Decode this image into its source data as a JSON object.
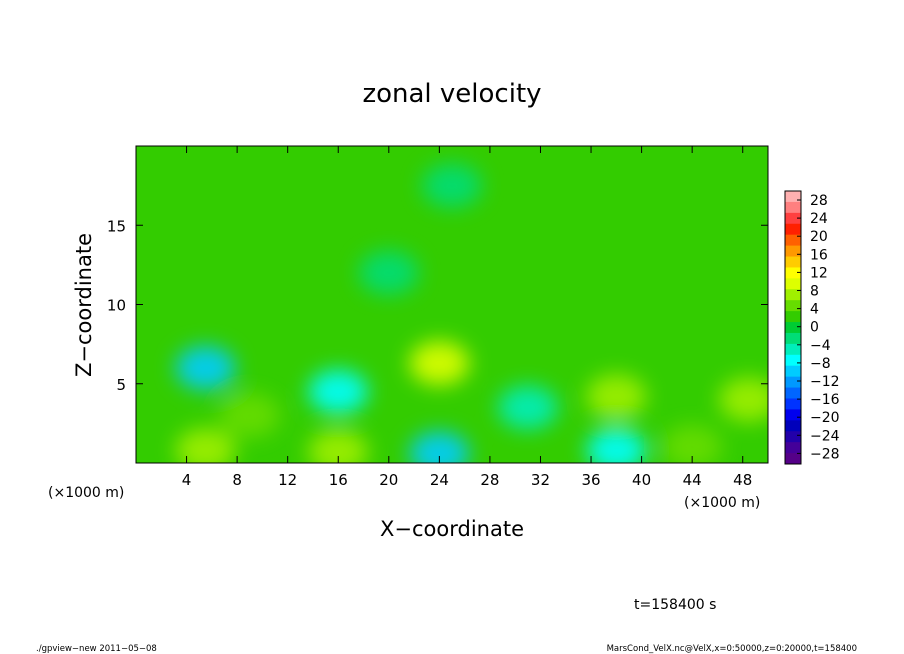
{
  "chart_data": {
    "type": "heatmap",
    "title": "zonal velocity",
    "xlabel": "X−coordinate",
    "ylabel": "Z−coordinate",
    "xunit_left": "(×1000 m)",
    "xunit_right": "(×1000 m)",
    "xlim": [
      0,
      50
    ],
    "ylim": [
      0,
      20
    ],
    "xticks": [
      4,
      8,
      12,
      16,
      20,
      24,
      28,
      32,
      36,
      40,
      44,
      48
    ],
    "yticks": [
      5,
      10,
      15
    ],
    "colorbar": {
      "tick_labels": [
        "28",
        "24",
        "20",
        "16",
        "12",
        "8",
        "4",
        "0",
        "−4",
        "−8",
        "−12",
        "−16",
        "−20",
        "−24",
        "−28"
      ],
      "colors": [
        "#ffb0b0",
        "#ff8080",
        "#ff4040",
        "#ff2000",
        "#ff6000",
        "#ff9900",
        "#ffcc00",
        "#ffff00",
        "#ddff00",
        "#a0f000",
        "#66dd00",
        "#33cc00",
        "#00cc33",
        "#00dd77",
        "#00eebb",
        "#00ffff",
        "#00ccff",
        "#0099ff",
        "#0066ff",
        "#0033ff",
        "#0000ee",
        "#0000bb",
        "#2200aa",
        "#440099",
        "#550088"
      ]
    },
    "background_value": 0,
    "features": [
      {
        "x": 5.5,
        "z": 6.0,
        "value": -10
      },
      {
        "x": 5.5,
        "z": 0.8,
        "value": 8
      },
      {
        "x": 16.0,
        "z": 4.5,
        "value": -7
      },
      {
        "x": 16.0,
        "z": 0.7,
        "value": 6
      },
      {
        "x": 24.0,
        "z": 6.3,
        "value": 9
      },
      {
        "x": 24.0,
        "z": 0.6,
        "value": -9
      },
      {
        "x": 38.0,
        "z": 4.2,
        "value": 7
      },
      {
        "x": 38.0,
        "z": 0.8,
        "value": -8
      },
      {
        "x": 48.5,
        "z": 4.0,
        "value": 6
      },
      {
        "x": 9.0,
        "z": 3.0,
        "value": 4
      },
      {
        "x": 31.0,
        "z": 3.5,
        "value": -4
      },
      {
        "x": 44.0,
        "z": 1.0,
        "value": 5
      },
      {
        "x": 25.0,
        "z": 17.5,
        "value": -3
      },
      {
        "x": 20.0,
        "z": 12.0,
        "value": -2
      }
    ]
  },
  "time_label": "t=158400 s",
  "footer_left": "./gpview−new   2011−05−08",
  "footer_right": "MarsCond_VelX.nc@VelX,x=0:50000,z=0:20000,t=158400"
}
